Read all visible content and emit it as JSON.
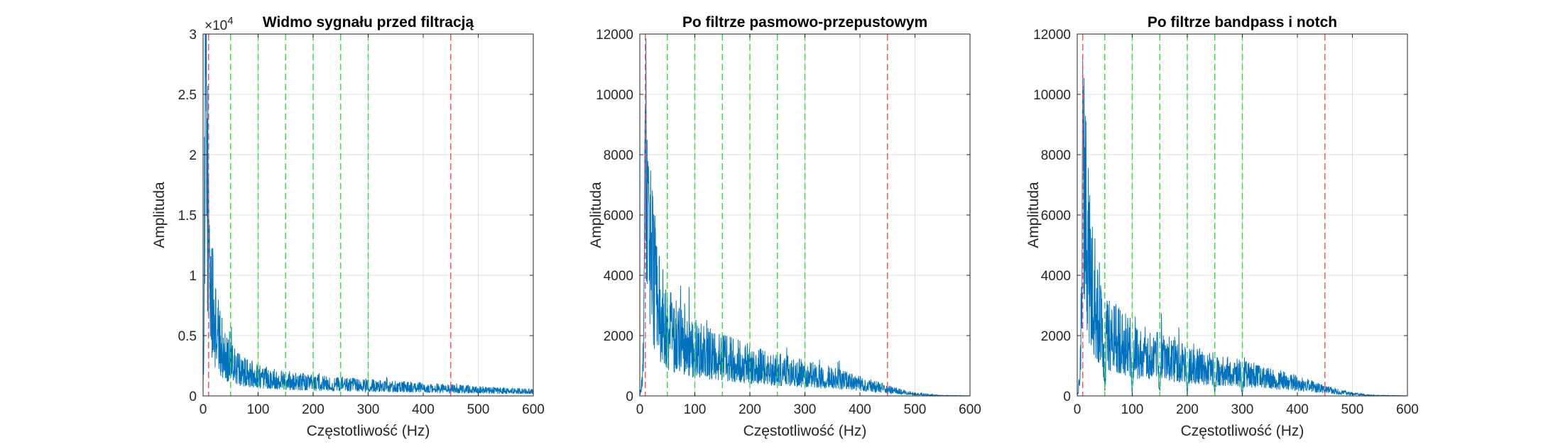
{
  "colors": {
    "spectrum": "#0072BD",
    "passband_edge": "#FF4D4D",
    "harmonic": "#33DD33",
    "grid": "#DCDCDC",
    "axis": "#262626"
  },
  "chart_data": [
    {
      "type": "line",
      "title": "Widmo sygnału przed filtracją",
      "xlabel": "Częstotliwość (Hz)",
      "ylabel": "Amplituda",
      "xlim": [
        0,
        600
      ],
      "ylim": [
        0,
        30000
      ],
      "xticks": [
        0,
        100,
        200,
        300,
        400,
        500,
        600
      ],
      "xtick_labels": [
        "0",
        "100",
        "200",
        "300",
        "400",
        "500",
        "600"
      ],
      "yticks": [
        0,
        5000,
        10000,
        15000,
        20000,
        25000,
        30000
      ],
      "ytick_labels": [
        "0",
        "0.5",
        "1",
        "1.5",
        "2",
        "2.5",
        "3"
      ],
      "y_exponent": "4",
      "grid": true,
      "series": [
        {
          "x": [
            0,
            5,
            8,
            10,
            12,
            15,
            18,
            20,
            25,
            30,
            35,
            40,
            45,
            50,
            60,
            70,
            80,
            90,
            100,
            120,
            140,
            160,
            180,
            200,
            250,
            300,
            350,
            400,
            450,
            500,
            550,
            600
          ],
          "y": [
            0,
            28000,
            20000,
            15000,
            12000,
            9500,
            8000,
            7000,
            6000,
            5000,
            4300,
            3800,
            3400,
            3000,
            2600,
            2300,
            2100,
            1950,
            1800,
            1650,
            1500,
            1400,
            1300,
            1200,
            1050,
            950,
            850,
            750,
            650,
            550,
            480,
            420
          ]
        }
      ],
      "vlines": [
        {
          "x": 10,
          "style": "passband_edge"
        },
        {
          "x": 450,
          "style": "passband_edge"
        },
        {
          "x": 50,
          "style": "harmonic"
        },
        {
          "x": 100,
          "style": "harmonic"
        },
        {
          "x": 150,
          "style": "harmonic"
        },
        {
          "x": 200,
          "style": "harmonic"
        },
        {
          "x": 250,
          "style": "harmonic"
        },
        {
          "x": 300,
          "style": "harmonic"
        }
      ]
    },
    {
      "type": "line",
      "title": "Po filtrze pasmowo-przepustowym",
      "xlabel": "Częstotliwość (Hz)",
      "ylabel": "Amplituda",
      "xlim": [
        0,
        600
      ],
      "ylim": [
        0,
        12000
      ],
      "xticks": [
        0,
        100,
        200,
        300,
        400,
        500,
        600
      ],
      "xtick_labels": [
        "0",
        "100",
        "200",
        "300",
        "400",
        "500",
        "600"
      ],
      "yticks": [
        0,
        2000,
        4000,
        6000,
        8000,
        10000,
        12000
      ],
      "ytick_labels": [
        "0",
        "2000",
        "4000",
        "6000",
        "8000",
        "10000",
        "12000"
      ],
      "y_exponent": "",
      "grid": true,
      "series": [
        {
          "x": [
            0,
            5,
            8,
            10,
            12,
            15,
            18,
            20,
            25,
            30,
            35,
            40,
            45,
            50,
            60,
            70,
            80,
            90,
            100,
            120,
            140,
            160,
            180,
            200,
            250,
            300,
            350,
            400,
            430,
            450,
            470,
            500,
            530,
            550,
            600
          ],
          "y": [
            0,
            600,
            3500,
            8000,
            9500,
            7500,
            6000,
            5200,
            4500,
            3900,
            3400,
            3000,
            2700,
            2500,
            2250,
            2050,
            1900,
            1800,
            1700,
            1580,
            1460,
            1350,
            1250,
            1150,
            950,
            800,
            650,
            450,
            330,
            250,
            170,
            80,
            30,
            15,
            5
          ]
        }
      ],
      "vlines": [
        {
          "x": 10,
          "style": "passband_edge"
        },
        {
          "x": 450,
          "style": "passband_edge"
        },
        {
          "x": 50,
          "style": "harmonic"
        },
        {
          "x": 100,
          "style": "harmonic"
        },
        {
          "x": 150,
          "style": "harmonic"
        },
        {
          "x": 200,
          "style": "harmonic"
        },
        {
          "x": 250,
          "style": "harmonic"
        },
        {
          "x": 300,
          "style": "harmonic"
        }
      ]
    },
    {
      "type": "line",
      "title": "Po filtrze bandpass i notch",
      "xlabel": "Częstotliwość (Hz)",
      "ylabel": "Amplituda",
      "xlim": [
        0,
        600
      ],
      "ylim": [
        0,
        12000
      ],
      "xticks": [
        0,
        100,
        200,
        300,
        400,
        500,
        600
      ],
      "xtick_labels": [
        "0",
        "100",
        "200",
        "300",
        "400",
        "500",
        "600"
      ],
      "yticks": [
        0,
        2000,
        4000,
        6000,
        8000,
        10000,
        12000
      ],
      "ytick_labels": [
        "0",
        "2000",
        "4000",
        "6000",
        "8000",
        "10000",
        "12000"
      ],
      "y_exponent": "",
      "grid": true,
      "notches": [
        50,
        100,
        150,
        200,
        250,
        300
      ],
      "series": [
        {
          "x": [
            0,
            5,
            8,
            10,
            12,
            15,
            18,
            20,
            25,
            30,
            35,
            40,
            45,
            50,
            60,
            70,
            80,
            90,
            100,
            120,
            140,
            160,
            180,
            200,
            250,
            300,
            350,
            400,
            430,
            450,
            470,
            500,
            530,
            550,
            600
          ],
          "y": [
            0,
            600,
            3500,
            8000,
            9500,
            7500,
            6000,
            5200,
            4500,
            3900,
            3400,
            3000,
            2700,
            2500,
            2250,
            2050,
            1900,
            1800,
            1700,
            1580,
            1460,
            1350,
            1250,
            1150,
            950,
            800,
            650,
            450,
            330,
            250,
            170,
            80,
            30,
            15,
            5
          ]
        }
      ],
      "vlines": [
        {
          "x": 10,
          "style": "passband_edge"
        },
        {
          "x": 450,
          "style": "passband_edge"
        },
        {
          "x": 50,
          "style": "harmonic"
        },
        {
          "x": 100,
          "style": "harmonic"
        },
        {
          "x": 150,
          "style": "harmonic"
        },
        {
          "x": 200,
          "style": "harmonic"
        },
        {
          "x": 250,
          "style": "harmonic"
        },
        {
          "x": 300,
          "style": "harmonic"
        }
      ]
    }
  ]
}
